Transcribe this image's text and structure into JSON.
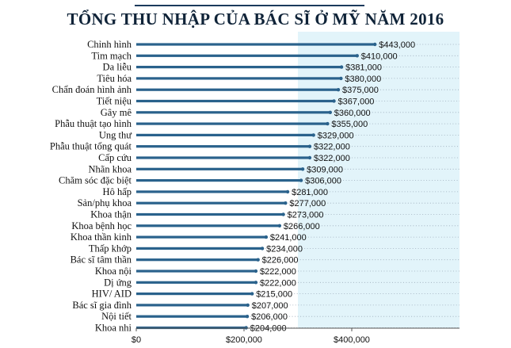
{
  "title": "TỔNG THU NHẬP CỦA BÁC SĨ Ở MỸ NĂM 2016",
  "colors": {
    "bar": "#2a628c",
    "highlight_band": "#e2f4fa",
    "axis": "#555555",
    "dots": "#9aa9b8",
    "title_rule": "#1b3a5c"
  },
  "chart_data": {
    "type": "bar",
    "orientation": "horizontal",
    "title": "TỔNG THU NHẬP CỦA BÁC SĨ Ở MỸ NĂM 2016",
    "categories": [
      "Chỉnh hình",
      "Tim mạch",
      "Da liễu",
      "Tiêu hóa",
      "Chẩn đoán hình ảnh",
      "Tiết niệu",
      "Gây mê",
      "Phẫu thuật tạo hình",
      "Ung thư",
      "Phẫu thuật tổng quát",
      "Cấp cứu",
      "Nhãn khoa",
      "Chăm sóc đặc biệt",
      "Hô hấp",
      "Sản/phụ khoa",
      "Khoa thận",
      "Khoa bệnh học",
      "Khoa thần kinh",
      "Thấp khớp",
      "Bác sĩ tâm thần",
      "Khoa nội",
      "Dị ứng",
      "HIV/ AID",
      "Bác sĩ gia đình",
      "Nội tiết",
      "Khoa nhi"
    ],
    "values": [
      443000,
      410000,
      381000,
      380000,
      375000,
      367000,
      360000,
      355000,
      329000,
      322000,
      322000,
      309000,
      306000,
      281000,
      277000,
      273000,
      266000,
      241000,
      234000,
      226000,
      222000,
      222000,
      215000,
      207000,
      206000,
      204000
    ],
    "value_labels": [
      "$443,000",
      "$410,000",
      "$381,000",
      "$380,000",
      "$375,000",
      "$367,000",
      "$360,000",
      "$355,000",
      "$329,000",
      "$322,000",
      "$322,000",
      "$309,000",
      "$306,000",
      "$281,000",
      "$277,000",
      "$273,000",
      "$266,000",
      "$241,000",
      "$234,000",
      "$226,000",
      "$222,000",
      "$222,000",
      "$215,000",
      "$207,000",
      "$206,000",
      "$204,000"
    ],
    "xticks": [
      0,
      200000,
      400000
    ],
    "xtick_labels": [
      "$0",
      "$200,000",
      "$400,000"
    ],
    "xlim": [
      0,
      600000
    ],
    "highlight_start": 300000,
    "grid": false
  }
}
